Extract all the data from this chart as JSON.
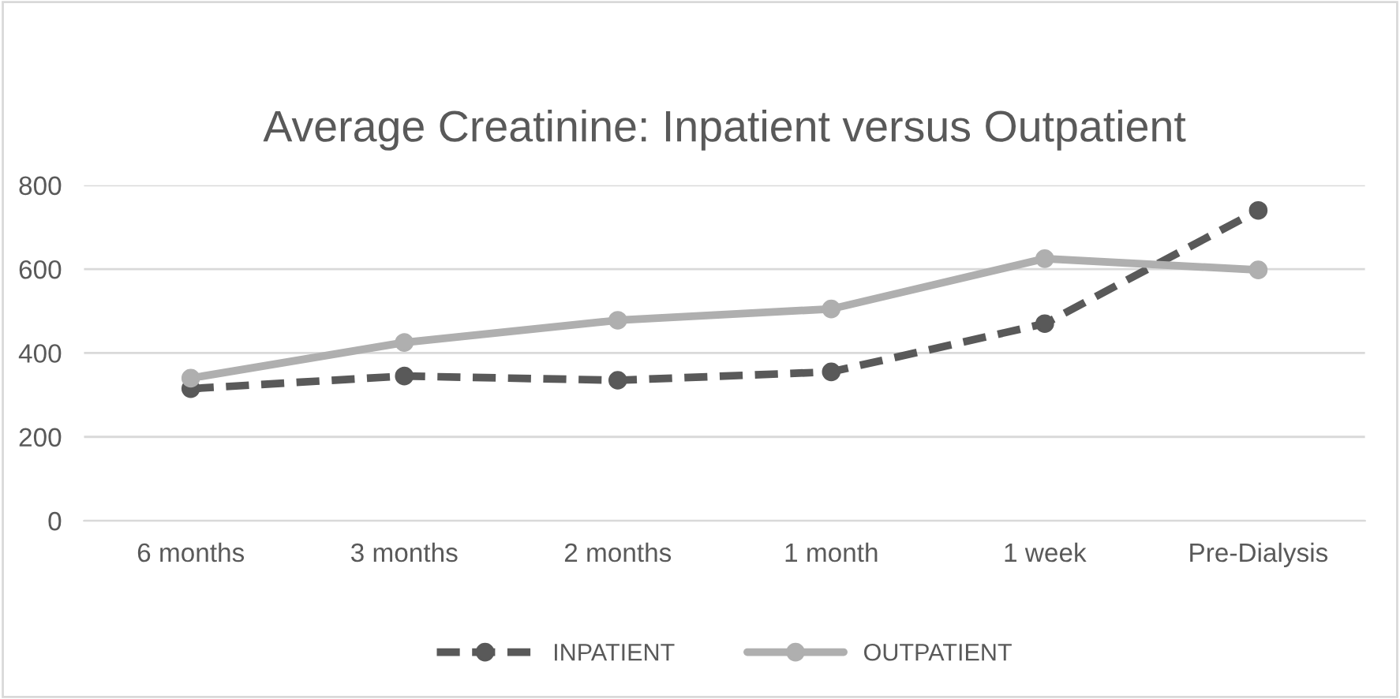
{
  "chart_data": {
    "type": "line",
    "title": "Average Creatinine: Inpatient versus Outpatient",
    "categories": [
      "6 months",
      "3 months",
      "2 months",
      "1 month",
      "1 week",
      "Pre-Dialysis"
    ],
    "series": [
      {
        "name": "INPATIENT",
        "color": "#595959",
        "values": [
          315,
          345,
          335,
          355,
          470,
          740
        ],
        "line_style": "dashed"
      },
      {
        "name": "OUTPATIENT",
        "color": "#afafaf",
        "values": [
          340,
          425,
          478,
          505,
          625,
          598
        ],
        "line_style": "solid"
      }
    ],
    "ylim": [
      0,
      800
    ],
    "yticks": [
      0,
      200,
      400,
      600,
      800
    ],
    "grid": "y",
    "legend": "bottom",
    "marker": "circle"
  }
}
